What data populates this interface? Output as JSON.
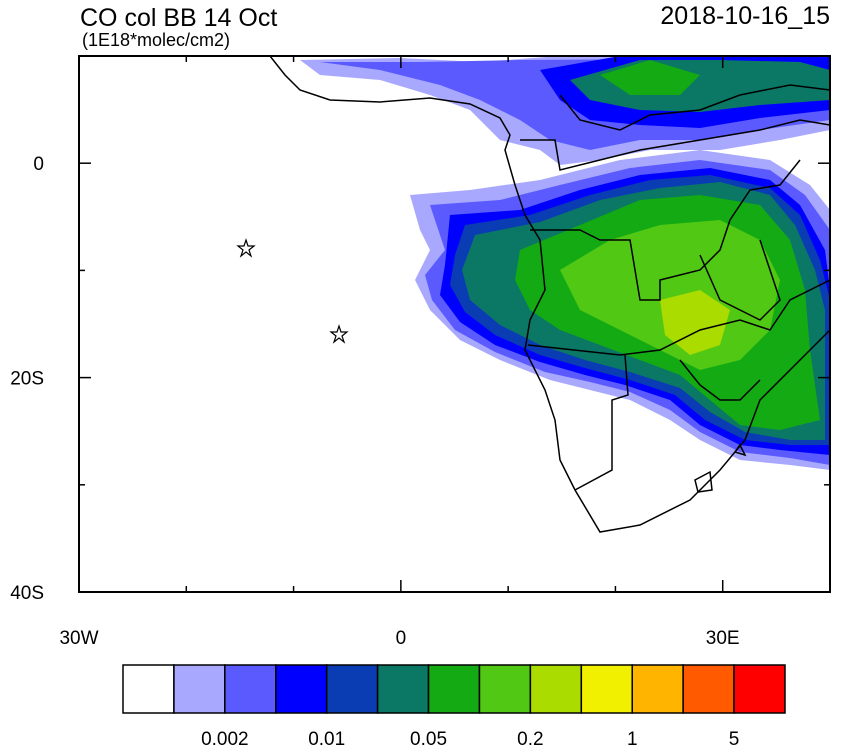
{
  "map": {
    "title": "CO col BB 14 Oct",
    "subtitle": "(1E18*molec/cm2)",
    "date": "2018-10-16_15",
    "xlim": [
      -30,
      40
    ],
    "ylim": [
      -40,
      10
    ],
    "xticks": [
      {
        "value": -30,
        "label": "30W"
      },
      {
        "value": 0,
        "label": "0"
      },
      {
        "value": 30,
        "label": "30E"
      }
    ],
    "yticks": [
      {
        "value": 0,
        "label": "0"
      },
      {
        "value": -20,
        "label": "20S"
      },
      {
        "value": -40,
        "label": "40S"
      }
    ],
    "xticks_minor": [
      -20,
      -10,
      10,
      20,
      40
    ],
    "yticks_minor": [
      -10,
      -30
    ],
    "colorbar": {
      "colors": [
        "#ffffff",
        "#a8a8ff",
        "#5a5aff",
        "#0000ff",
        "#0a3cb4",
        "#0a7864",
        "#14aa14",
        "#50c814",
        "#aadc00",
        "#f0f000",
        "#ffb400",
        "#ff5a00",
        "#ff0000"
      ],
      "labels": [
        "0.002",
        "0.01",
        "0.05",
        "0.2",
        "1",
        "5"
      ]
    }
  }
}
